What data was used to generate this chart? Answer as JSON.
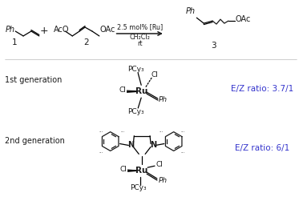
{
  "background_color": "#ffffff",
  "reaction_conditions": "2.5 mol% [Ru]",
  "solvent": "CH₂Cl₂",
  "temp": "rt",
  "compound1_label": "1",
  "compound2_label": "2",
  "compound3_label": "3",
  "gen1_label": "1st generation",
  "gen2_label": "2nd generation",
  "ez_ratio_1": "E/Z ratio: 3.7/1",
  "ez_ratio_2": "E/Z ratio: 6/1",
  "ez_color": "#3333cc",
  "text_color": "#1a1a1a",
  "fig_width": 3.78,
  "fig_height": 2.66,
  "dpi": 100
}
